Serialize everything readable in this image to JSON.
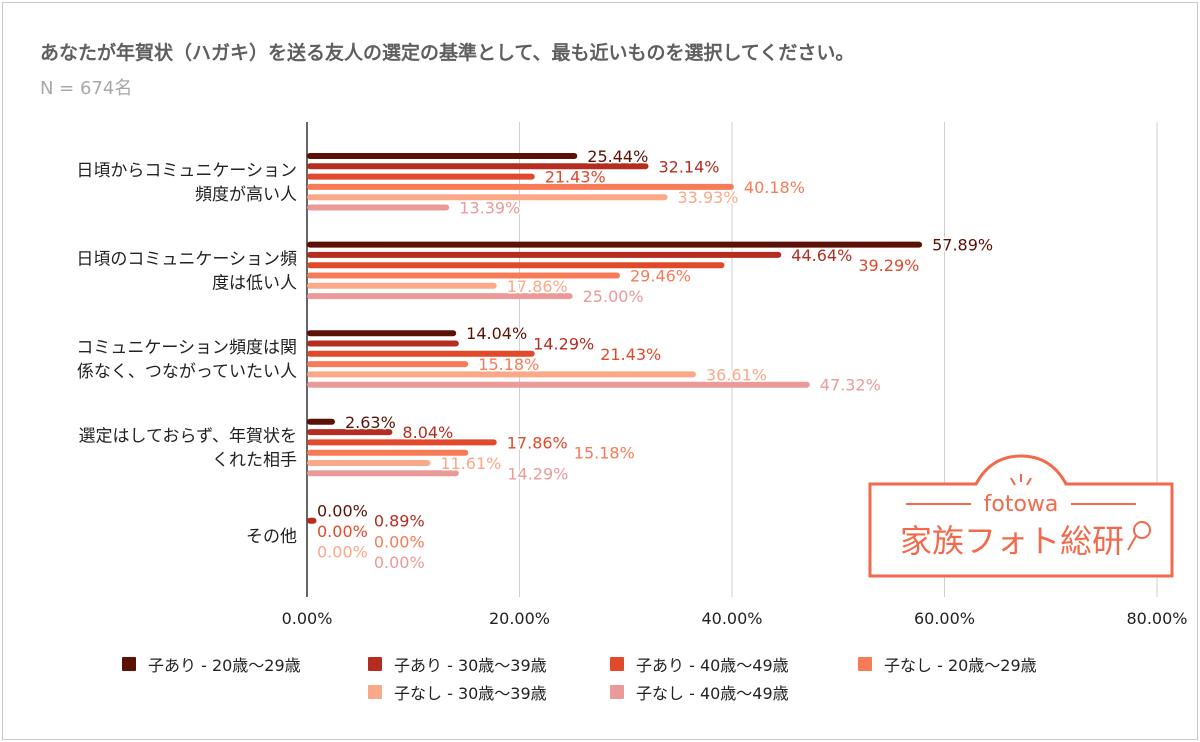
{
  "title": "あなたが年賀状（ハガキ）を送る友人の選定の基準として、最も近いものを選択してください。",
  "subtitle": "N = 674名",
  "logo": {
    "brand": "fotowa",
    "name": "家族フォト総研",
    "color": "#f26a4b"
  },
  "chart_data": {
    "type": "bar",
    "orientation": "horizontal",
    "categories": [
      [
        "日頃からコミュニケーション",
        "頻度が高い人"
      ],
      [
        "日頃のコミュニケーション頻",
        "度は低い人"
      ],
      [
        "コミュニケーション頻度は関",
        "係なく、つながっていたい人"
      ],
      [
        "選定はしておらず、年賀状を",
        "くれた相手"
      ],
      [
        "その他"
      ]
    ],
    "series": [
      {
        "name": "子あり - 20歳〜29歳",
        "color": "#5b1105",
        "values": [
          25.44,
          57.89,
          14.04,
          2.63,
          0.0
        ],
        "labels": [
          "25.44%",
          "57.89%",
          "14.04%",
          "2.63%",
          "0.00%"
        ]
      },
      {
        "name": "子あり - 30歳〜39歳",
        "color": "#b52d20",
        "values": [
          32.14,
          44.64,
          14.29,
          8.04,
          0.89
        ],
        "labels": [
          "32.14%",
          "44.64%",
          "14.29%",
          "8.04%",
          "0.89%"
        ]
      },
      {
        "name": "子あり - 40歳〜49歳",
        "color": "#e0492a",
        "values": [
          21.43,
          39.29,
          21.43,
          17.86,
          0.0
        ],
        "labels": [
          "21.43%",
          "39.29%",
          "21.43%",
          "17.86%",
          "0.00%"
        ]
      },
      {
        "name": "子なし - 20歳〜29歳",
        "color": "#f87b58",
        "values": [
          40.18,
          29.46,
          15.18,
          15.18,
          0.0
        ],
        "labels": [
          "40.18%",
          "29.46%",
          "15.18%",
          "15.18%",
          "0.00%"
        ]
      },
      {
        "name": "子なし - 30歳〜39歳",
        "color": "#fba888",
        "values": [
          33.93,
          17.86,
          36.61,
          11.61,
          0.0
        ],
        "labels": [
          "33.93%",
          "17.86%",
          "36.61%",
          "11.61%",
          "0.00%"
        ]
      },
      {
        "name": "子なし - 40歳〜49歳",
        "color": "#eb9a9a",
        "values": [
          13.39,
          25.0,
          47.32,
          14.29,
          0.0
        ],
        "labels": [
          "13.39%",
          "25.00%",
          "47.32%",
          "14.29%",
          "0.00%"
        ]
      }
    ],
    "xlim": [
      0,
      80
    ],
    "xticks": [
      "0.00%",
      "20.00%",
      "40.00%",
      "60.00%",
      "80.00%"
    ],
    "grid": true,
    "legend": "bottom"
  }
}
